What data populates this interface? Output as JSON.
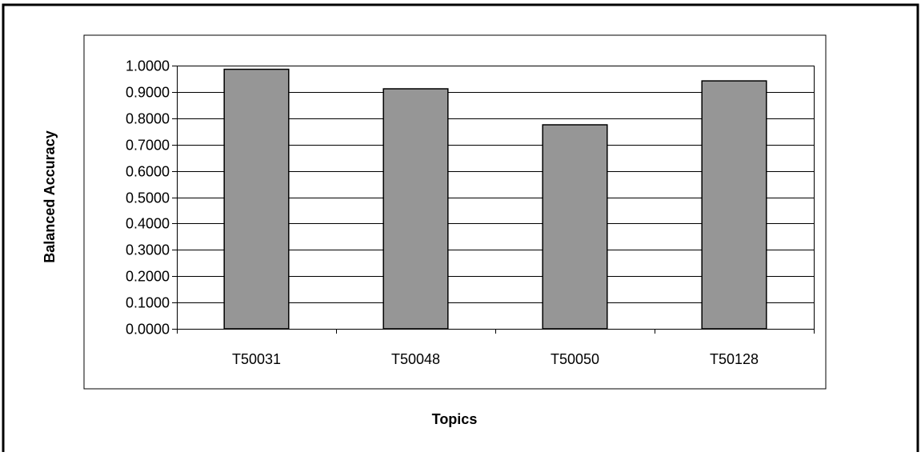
{
  "chart_data": {
    "type": "bar",
    "title": "",
    "xlabel": "Topics",
    "ylabel": "Balanced Accuracy",
    "categories": [
      "T50031",
      "T50048",
      "T50050",
      "T50128"
    ],
    "values": [
      0.986,
      0.912,
      0.775,
      0.942
    ],
    "ylim": [
      0,
      1.0
    ],
    "ytick_step": 0.1,
    "ytick_labels": [
      "0.0000",
      "0.1000",
      "0.2000",
      "0.3000",
      "0.4000",
      "0.5000",
      "0.6000",
      "0.7000",
      "0.8000",
      "0.9000",
      "1.0000"
    ],
    "grid": true,
    "legend": "none",
    "colors": {
      "bar_fill": "#969696",
      "bar_stroke": "#000000",
      "gridline": "#000000"
    }
  }
}
